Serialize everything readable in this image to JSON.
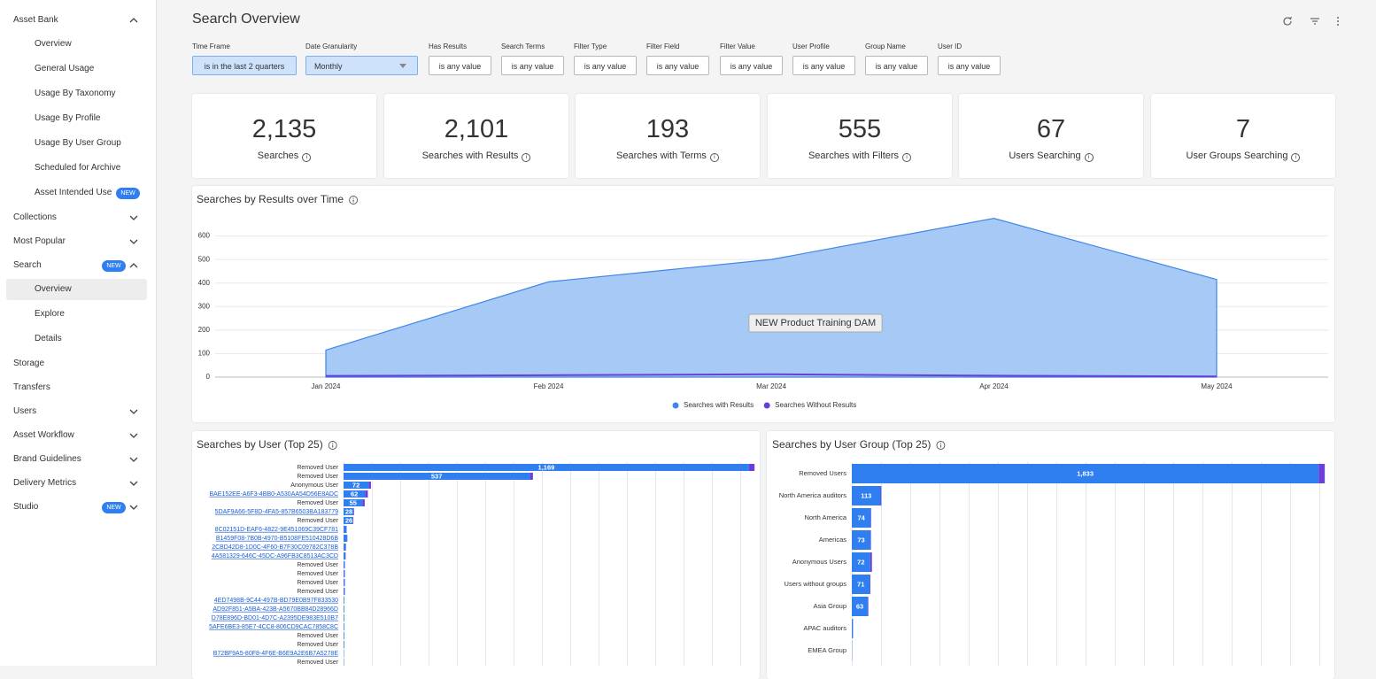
{
  "sidebar": [
    {
      "label": "Asset Bank",
      "level": 1,
      "chevron": "up"
    },
    {
      "label": "Overview",
      "level": 2
    },
    {
      "label": "General Usage",
      "level": 2
    },
    {
      "label": "Usage By Taxonomy",
      "level": 2
    },
    {
      "label": "Usage By Profile",
      "level": 2
    },
    {
      "label": "Usage By User Group",
      "level": 2
    },
    {
      "label": "Scheduled for Archive",
      "level": 2
    },
    {
      "label": "Asset Intended Use",
      "level": 2,
      "badge": "NEW"
    },
    {
      "label": "Collections",
      "level": 1,
      "chevron": "down"
    },
    {
      "label": "Most Popular",
      "level": 1,
      "chevron": "down"
    },
    {
      "label": "Search",
      "level": 1,
      "chevron": "up",
      "badge": "NEW"
    },
    {
      "label": "Overview",
      "level": 2,
      "selected": true
    },
    {
      "label": "Explore",
      "level": 2
    },
    {
      "label": "Details",
      "level": 2
    },
    {
      "label": "Storage",
      "level": 1
    },
    {
      "label": "Transfers",
      "level": 1
    },
    {
      "label": "Users",
      "level": 1,
      "chevron": "down"
    },
    {
      "label": "Asset Workflow",
      "level": 1,
      "chevron": "down"
    },
    {
      "label": "Brand Guidelines",
      "level": 1,
      "chevron": "down"
    },
    {
      "label": "Delivery Metrics",
      "level": 1,
      "chevron": "down"
    },
    {
      "label": "Studio",
      "level": 1,
      "chevron": "down",
      "badge": "NEW"
    }
  ],
  "header": {
    "title": "Search Overview"
  },
  "filters": [
    {
      "label": "Time Frame",
      "value": "is in the last 2 quarters",
      "active": true
    },
    {
      "label": "Date Granularity",
      "value": "Monthly",
      "active": true,
      "dropdown": true
    },
    {
      "label": "Has Results",
      "value": "is any value"
    },
    {
      "label": "Search Terms",
      "value": "is any value"
    },
    {
      "label": "Filter Type",
      "value": "is any value"
    },
    {
      "label": "Filter Field",
      "value": "is any value"
    },
    {
      "label": "Filter Value",
      "value": "is any value"
    },
    {
      "label": "User Profile",
      "value": "is any value"
    },
    {
      "label": "Group Name",
      "value": "is any value"
    },
    {
      "label": "User ID",
      "value": "is any value"
    }
  ],
  "kpis": [
    {
      "value": "2,135",
      "label": "Searches"
    },
    {
      "value": "2,101",
      "label": "Searches with Results"
    },
    {
      "value": "193",
      "label": "Searches with Terms"
    },
    {
      "value": "555",
      "label": "Searches with Filters"
    },
    {
      "value": "67",
      "label": "Users Searching"
    },
    {
      "value": "7",
      "label": "User Groups Searching"
    }
  ],
  "chart_data": [
    {
      "type": "area",
      "title": "Searches by Results over Time",
      "categories": [
        "Jan 2024",
        "Feb 2024",
        "Mar 2024",
        "Apr 2024",
        "May 2024"
      ],
      "series": [
        {
          "name": "Searches with Results",
          "color": "#3f86e8",
          "values": [
            115,
            405,
            500,
            675,
            415
          ]
        },
        {
          "name": "Searches Without Results",
          "color": "#6a3fd8",
          "values": [
            5,
            8,
            12,
            6,
            3
          ]
        }
      ],
      "ylim": [
        0,
        700
      ],
      "yticks": [
        0,
        100,
        200,
        300,
        400,
        500,
        600
      ],
      "grid": true,
      "legend": "bottom",
      "annotations": [
        {
          "text": "NEW Product Training DAM"
        }
      ]
    },
    {
      "type": "bar",
      "orientation": "horizontal",
      "stacked": true,
      "title": "Searches by User (Top 25)",
      "categories": [
        "Removed User",
        "Removed User",
        "Anonymous User",
        "BAE152EE-A6F3-4BB0-A530AA54D56E8ADC",
        "Removed User",
        "5DAF9A66-5F8D-4FA5-857B6503BA183779",
        "Removed User",
        "8C02151D-EAF6-4822-9E451069C39CF781",
        "B1459F08-7B0B-4970-B5108FE510428D6B",
        "2CBD42D8-1D0C-4F60-B7F30C09782C378B",
        "4A581329-646C-45DC-A96FB3C8513AC3CD",
        "Removed User",
        "Removed User",
        "Removed User",
        "Removed User",
        "4ED7498B-9C44-497B-BD79E0B97F833530",
        "AD92F851-A5BA-423B-A5670BB84D28966D",
        "D78E896D-BD01-4D7C-A2395DE983E510B7",
        "5AFE6BE3-85E7-4CC8-806CD9CAC7858C8C",
        "Removed User",
        "Removed User",
        "B72BF9A5-80F8-4F6E-B6E9A2E6B7A5278E",
        "Removed User"
      ],
      "category_links": [
        false,
        false,
        false,
        true,
        false,
        true,
        false,
        true,
        true,
        true,
        true,
        false,
        false,
        false,
        false,
        true,
        true,
        true,
        true,
        false,
        false,
        true,
        false
      ],
      "series": [
        {
          "color": "#2f7ff0",
          "values": [
            1169,
            537,
            72,
            62,
            55,
            28,
            26,
            8,
            10,
            6,
            5,
            3,
            3,
            3,
            3,
            2,
            2,
            2,
            2,
            2,
            2,
            1,
            1
          ],
          "value_labels": [
            "1,169",
            "537",
            "72",
            "62",
            "55",
            "28",
            "26",
            null,
            null,
            null,
            null,
            null,
            null,
            null,
            null,
            null,
            null,
            null,
            null,
            null,
            null,
            null,
            null
          ]
        },
        {
          "color": "#6a3fd8",
          "values": [
            16,
            9,
            7,
            8,
            6,
            2,
            2,
            1,
            1,
            1,
            1,
            1,
            1,
            1,
            1,
            0,
            0,
            0,
            0,
            0,
            0,
            0,
            0
          ]
        }
      ],
      "xlim": [
        0,
        1200
      ]
    },
    {
      "type": "bar",
      "orientation": "horizontal",
      "stacked": true,
      "title": "Searches by User Group (Top 25)",
      "categories": [
        "Removed Users",
        "North America auditors",
        "North America",
        "Americas",
        "Anonymous Users",
        "Users without groups",
        "Asia Group",
        "APAC auditors",
        "EMEA Group"
      ],
      "series": [
        {
          "color": "#2f7ff0",
          "values": [
            1833,
            113,
            74,
            73,
            72,
            71,
            63,
            4,
            1
          ],
          "value_labels": [
            "1,833",
            "113",
            "74",
            "73",
            "72",
            "71",
            "63",
            null,
            null
          ]
        },
        {
          "color": "#6a3fd8",
          "values": [
            24,
            3,
            2,
            2,
            7,
            2,
            2,
            1,
            0
          ]
        }
      ],
      "xlim": [
        0,
        1860
      ]
    }
  ]
}
